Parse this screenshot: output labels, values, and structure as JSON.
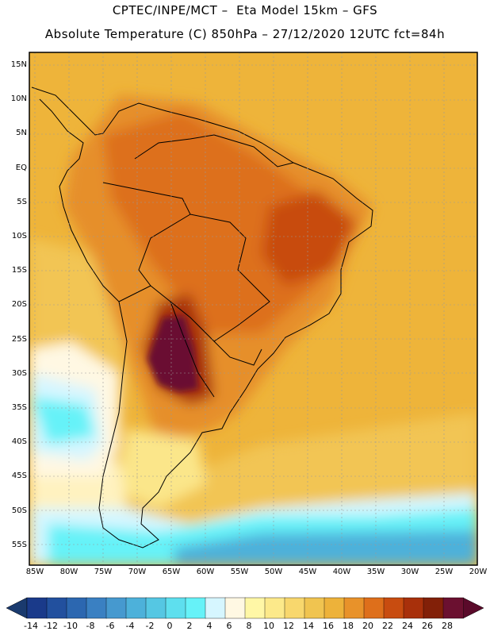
{
  "title_line1": "CPTEC/INPE/MCT –  Eta Model 15km – GFS",
  "title_line2": "Absolute Temperature (C) 850hPa – 27/12/2020 12UTC fct=84h",
  "lat_labels": [
    "15N",
    "10N",
    "5N",
    "EQ",
    "5S",
    "10S",
    "15S",
    "20S",
    "25S",
    "30S",
    "35S",
    "40S",
    "45S",
    "50S",
    "55S"
  ],
  "lon_labels": [
    "85W",
    "80W",
    "75W",
    "70W",
    "65W",
    "60W",
    "55W",
    "50W",
    "45W",
    "40W",
    "35W",
    "30W",
    "25W",
    "20W"
  ],
  "colorbar": {
    "labels": [
      "-14",
      "-12",
      "-10",
      "-8",
      "-6",
      "-4",
      "-2",
      "0",
      "2",
      "4",
      "6",
      "8",
      "10",
      "12",
      "14",
      "16",
      "18",
      "20",
      "22",
      "24",
      "26",
      "28"
    ],
    "colors": [
      "#1a3a8a",
      "#22509e",
      "#2c67b0",
      "#3a80c2",
      "#4699cf",
      "#4db1da",
      "#55c7e3",
      "#5edfee",
      "#66f2f8",
      "#d6f6ff",
      "#fff8e3",
      "#fff7a6",
      "#fce98a",
      "#f8d76d",
      "#f0c450",
      "#edb23a",
      "#e8922a",
      "#de6f1b",
      "#c84c10",
      "#a8300b",
      "#822008",
      "#6b1030"
    ]
  }
}
